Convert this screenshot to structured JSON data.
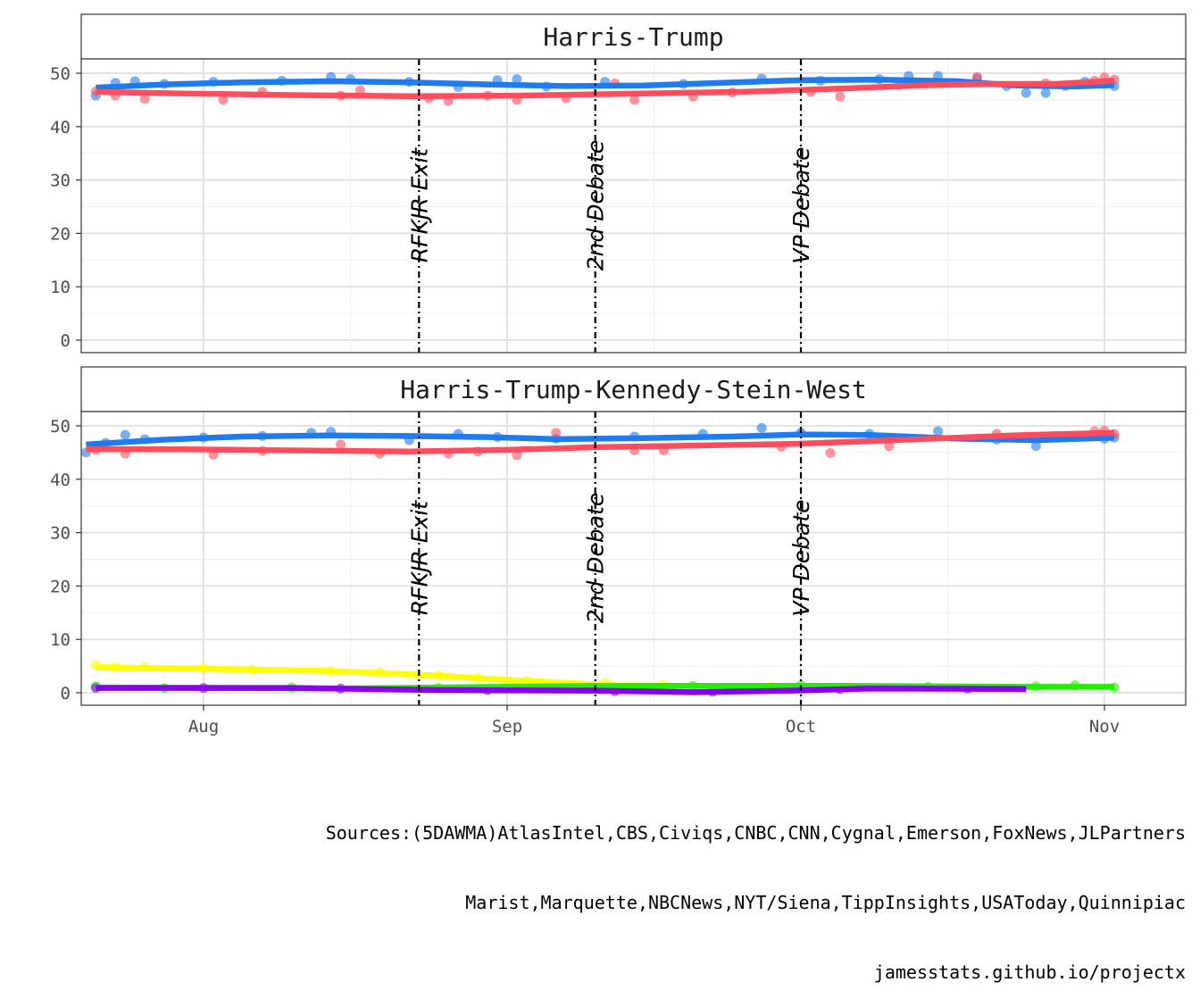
{
  "chart_data": [
    {
      "type": "line",
      "panel_title": "Harris-Trump",
      "ylim": [
        0,
        50
      ],
      "yticks": [
        0,
        10,
        20,
        30,
        40,
        50
      ],
      "grid": true,
      "series": [
        {
          "color": "#1E7BF0",
          "line": [
            [
              "2024-07-21",
              47.3
            ],
            [
              "2024-07-28",
              47.9
            ],
            [
              "2024-08-05",
              48.3
            ],
            [
              "2024-08-14",
              48.5
            ],
            [
              "2024-08-22",
              48.3
            ],
            [
              "2024-08-30",
              47.9
            ],
            [
              "2024-09-07",
              47.6
            ],
            [
              "2024-09-15",
              47.7
            ],
            [
              "2024-09-23",
              48.2
            ],
            [
              "2024-10-01",
              48.7
            ],
            [
              "2024-10-09",
              48.8
            ],
            [
              "2024-10-17",
              48.5
            ],
            [
              "2024-10-23",
              47.7
            ],
            [
              "2024-10-29",
              47.5
            ],
            [
              "2024-11-02",
              47.8
            ]
          ],
          "points": [
            [
              "2024-07-21",
              45.8
            ],
            [
              "2024-07-23",
              48.2
            ],
            [
              "2024-07-25",
              48.5
            ],
            [
              "2024-07-28",
              48.0
            ],
            [
              "2024-08-02",
              48.4
            ],
            [
              "2024-08-09",
              48.6
            ],
            [
              "2024-08-14",
              49.3
            ],
            [
              "2024-08-16",
              48.9
            ],
            [
              "2024-08-22",
              48.4
            ],
            [
              "2024-08-27",
              47.4
            ],
            [
              "2024-08-31",
              48.7
            ],
            [
              "2024-09-02",
              48.9
            ],
            [
              "2024-09-05",
              47.5
            ],
            [
              "2024-09-11",
              48.4
            ],
            [
              "2024-09-19",
              48.0
            ],
            [
              "2024-09-27",
              49.0
            ],
            [
              "2024-10-03",
              48.6
            ],
            [
              "2024-10-09",
              48.9
            ],
            [
              "2024-10-12",
              49.5
            ],
            [
              "2024-10-15",
              49.5
            ],
            [
              "2024-10-19",
              49.0
            ],
            [
              "2024-10-22",
              47.6
            ],
            [
              "2024-10-24",
              46.3
            ],
            [
              "2024-10-26",
              46.3
            ],
            [
              "2024-10-28",
              47.6
            ],
            [
              "2024-10-30",
              48.4
            ],
            [
              "2024-11-01",
              48.0
            ],
            [
              "2024-11-02",
              47.6
            ]
          ]
        },
        {
          "color": "#FF4D5E",
          "line": [
            [
              "2024-07-21",
              46.5
            ],
            [
              "2024-07-30",
              46.2
            ],
            [
              "2024-08-10",
              45.9
            ],
            [
              "2024-08-22",
              45.7
            ],
            [
              "2024-09-02",
              45.8
            ],
            [
              "2024-09-15",
              46.2
            ],
            [
              "2024-09-25",
              46.5
            ],
            [
              "2024-10-05",
              47.1
            ],
            [
              "2024-10-13",
              47.7
            ],
            [
              "2024-10-20",
              48.0
            ],
            [
              "2024-10-27",
              48.0
            ],
            [
              "2024-11-02",
              48.6
            ]
          ],
          "points": [
            [
              "2024-07-21",
              46.6
            ],
            [
              "2024-07-23",
              45.8
            ],
            [
              "2024-07-26",
              45.2
            ],
            [
              "2024-08-03",
              45.0
            ],
            [
              "2024-08-07",
              46.5
            ],
            [
              "2024-08-15",
              45.8
            ],
            [
              "2024-08-17",
              46.8
            ],
            [
              "2024-08-24",
              45.3
            ],
            [
              "2024-08-26",
              44.8
            ],
            [
              "2024-08-30",
              45.8
            ],
            [
              "2024-09-02",
              45.0
            ],
            [
              "2024-09-07",
              45.3
            ],
            [
              "2024-09-12",
              48.1
            ],
            [
              "2024-09-14",
              45.0
            ],
            [
              "2024-09-20",
              45.6
            ],
            [
              "2024-09-24",
              46.4
            ],
            [
              "2024-10-02",
              46.5
            ],
            [
              "2024-10-05",
              45.6
            ],
            [
              "2024-10-11",
              47.8
            ],
            [
              "2024-10-19",
              49.3
            ],
            [
              "2024-10-26",
              48.1
            ],
            [
              "2024-10-31",
              48.6
            ],
            [
              "2024-11-01",
              49.2
            ],
            [
              "2024-11-02",
              48.8
            ]
          ]
        }
      ]
    },
    {
      "type": "line",
      "panel_title": "Harris-Trump-Kennedy-Stein-West",
      "ylim": [
        0,
        50
      ],
      "yticks": [
        0,
        10,
        20,
        30,
        40,
        50
      ],
      "grid": true,
      "series": [
        {
          "color": "#1E7BF0",
          "line": [
            [
              "2024-07-20",
              46.5
            ],
            [
              "2024-07-28",
              47.4
            ],
            [
              "2024-08-05",
              48.0
            ],
            [
              "2024-08-14",
              48.2
            ],
            [
              "2024-08-22",
              48.1
            ],
            [
              "2024-08-30",
              47.9
            ],
            [
              "2024-09-06",
              47.5
            ],
            [
              "2024-09-15",
              47.7
            ],
            [
              "2024-09-24",
              48.0
            ],
            [
              "2024-10-01",
              48.4
            ],
            [
              "2024-10-08",
              48.3
            ],
            [
              "2024-10-17",
              47.6
            ],
            [
              "2024-10-25",
              47.3
            ],
            [
              "2024-11-02",
              47.8
            ]
          ],
          "points": [
            [
              "2024-07-20",
              45.0
            ],
            [
              "2024-07-22",
              46.8
            ],
            [
              "2024-07-24",
              48.3
            ],
            [
              "2024-07-26",
              47.5
            ],
            [
              "2024-08-01",
              47.8
            ],
            [
              "2024-08-07",
              48.1
            ],
            [
              "2024-08-12",
              48.7
            ],
            [
              "2024-08-14",
              48.9
            ],
            [
              "2024-08-22",
              47.3
            ],
            [
              "2024-08-27",
              48.5
            ],
            [
              "2024-08-31",
              47.9
            ],
            [
              "2024-09-06",
              47.6
            ],
            [
              "2024-09-14",
              48.0
            ],
            [
              "2024-09-21",
              48.5
            ],
            [
              "2024-09-27",
              49.6
            ],
            [
              "2024-10-01",
              48.7
            ],
            [
              "2024-10-08",
              48.5
            ],
            [
              "2024-10-15",
              49.0
            ],
            [
              "2024-10-21",
              47.4
            ],
            [
              "2024-10-25",
              46.2
            ],
            [
              "2024-11-01",
              47.6
            ],
            [
              "2024-11-02",
              47.8
            ]
          ]
        },
        {
          "color": "#FF4D5E",
          "line": [
            [
              "2024-07-20",
              45.6
            ],
            [
              "2024-07-30",
              45.6
            ],
            [
              "2024-08-10",
              45.4
            ],
            [
              "2024-08-22",
              45.2
            ],
            [
              "2024-09-01",
              45.5
            ],
            [
              "2024-09-10",
              46.0
            ],
            [
              "2024-09-20",
              46.3
            ],
            [
              "2024-09-30",
              46.6
            ],
            [
              "2024-10-09",
              47.2
            ],
            [
              "2024-10-17",
              47.8
            ],
            [
              "2024-10-24",
              48.3
            ],
            [
              "2024-11-02",
              48.7
            ]
          ],
          "points": [
            [
              "2024-07-21",
              45.5
            ],
            [
              "2024-07-24",
              44.8
            ],
            [
              "2024-08-02",
              44.6
            ],
            [
              "2024-08-07",
              45.3
            ],
            [
              "2024-08-15",
              46.5
            ],
            [
              "2024-08-19",
              44.8
            ],
            [
              "2024-08-26",
              44.8
            ],
            [
              "2024-08-29",
              45.2
            ],
            [
              "2024-09-02",
              44.5
            ],
            [
              "2024-09-06",
              48.7
            ],
            [
              "2024-09-14",
              45.4
            ],
            [
              "2024-09-17",
              45.4
            ],
            [
              "2024-09-29",
              46.1
            ],
            [
              "2024-10-04",
              44.9
            ],
            [
              "2024-10-10",
              46.2
            ],
            [
              "2024-10-21",
              48.5
            ],
            [
              "2024-10-27",
              48.1
            ],
            [
              "2024-10-31",
              49.0
            ],
            [
              "2024-11-01",
              49.1
            ],
            [
              "2024-11-02",
              48.5
            ]
          ]
        },
        {
          "color": "#FFFF00",
          "line": [
            [
              "2024-07-21",
              4.8
            ],
            [
              "2024-08-01",
              4.5
            ],
            [
              "2024-08-14",
              4.1
            ],
            [
              "2024-08-24",
              3.3
            ],
            [
              "2024-09-01",
              2.4
            ],
            [
              "2024-09-12",
              1.4
            ],
            [
              "2024-09-25",
              1.2
            ],
            [
              "2024-10-10",
              1.0
            ],
            [
              "2024-10-24",
              0.8
            ]
          ],
          "points": [
            [
              "2024-07-21",
              5.2
            ],
            [
              "2024-07-23",
              4.8
            ],
            [
              "2024-07-26",
              4.9
            ],
            [
              "2024-08-01",
              4.7
            ],
            [
              "2024-08-06",
              4.3
            ],
            [
              "2024-08-14",
              4.0
            ],
            [
              "2024-08-19",
              3.9
            ],
            [
              "2024-08-25",
              3.2
            ],
            [
              "2024-08-29",
              2.8
            ],
            [
              "2024-09-03",
              2.3
            ],
            [
              "2024-09-11",
              1.9
            ],
            [
              "2024-09-17",
              1.5
            ],
            [
              "2024-09-28",
              1.2
            ],
            [
              "2024-10-06",
              1.0
            ],
            [
              "2024-10-14",
              0.8
            ],
            [
              "2024-10-22",
              0.6
            ]
          ]
        },
        {
          "color": "#22EE00",
          "line": [
            [
              "2024-07-21",
              1.0
            ],
            [
              "2024-08-15",
              0.8
            ],
            [
              "2024-09-10",
              1.3
            ],
            [
              "2024-10-05",
              1.3
            ],
            [
              "2024-10-24",
              1.1
            ],
            [
              "2024-11-02",
              1.1
            ]
          ],
          "points": [
            [
              "2024-07-21",
              1.2
            ],
            [
              "2024-07-28",
              0.9
            ],
            [
              "2024-08-10",
              1.0
            ],
            [
              "2024-08-25",
              0.9
            ],
            [
              "2024-09-08",
              1.4
            ],
            [
              "2024-09-20",
              1.3
            ],
            [
              "2024-10-01",
              1.4
            ],
            [
              "2024-10-14",
              1.1
            ],
            [
              "2024-10-25",
              1.2
            ],
            [
              "2024-10-29",
              1.4
            ],
            [
              "2024-11-02",
              1.0
            ]
          ]
        },
        {
          "color": "#8800EE",
          "line": [
            [
              "2024-07-21",
              0.9
            ],
            [
              "2024-08-10",
              0.9
            ],
            [
              "2024-08-25",
              0.5
            ],
            [
              "2024-09-10",
              0.4
            ],
            [
              "2024-09-20",
              0.1
            ],
            [
              "2024-09-30",
              0.4
            ],
            [
              "2024-10-08",
              0.8
            ],
            [
              "2024-10-24",
              0.7
            ]
          ],
          "points": [
            [
              "2024-07-21",
              0.9
            ],
            [
              "2024-08-01",
              0.9
            ],
            [
              "2024-08-15",
              0.8
            ],
            [
              "2024-08-30",
              0.5
            ],
            [
              "2024-09-12",
              0.3
            ],
            [
              "2024-09-22",
              0.2
            ],
            [
              "2024-10-05",
              0.7
            ],
            [
              "2024-10-18",
              0.8
            ]
          ]
        }
      ]
    }
  ],
  "x_axis": {
    "range": [
      "2024-07-18",
      "2024-11-05"
    ],
    "ticks": [
      {
        "date": "2024-08-01",
        "label": "Aug"
      },
      {
        "date": "2024-09-01",
        "label": "Sep"
      },
      {
        "date": "2024-10-01",
        "label": "Oct"
      },
      {
        "date": "2024-11-01",
        "label": "Nov"
      }
    ]
  },
  "events": [
    {
      "date": "2024-08-23",
      "label": "RFKJR Exit"
    },
    {
      "date": "2024-09-10",
      "label": "2nd Debate"
    },
    {
      "date": "2024-10-01",
      "label": "VP Debate"
    }
  ],
  "caption": [
    "Sources:(5DAWMA)AtlasIntel,CBS,Civiqs,CNBC,CNN,Cygnal,Emerson,FoxNews,JLPartners",
    "Marist,Marquette,NBCNews,NYT/Siena,TippInsights,USAToday,Quinnipiac",
    "jamesstats.github.io/projectx"
  ]
}
